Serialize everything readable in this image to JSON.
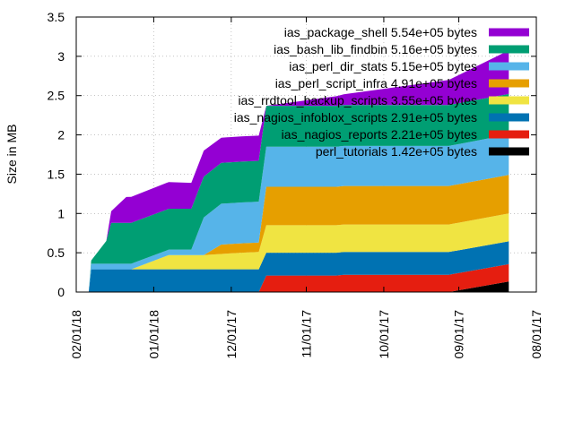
{
  "chart_data": {
    "type": "area",
    "stacked": true,
    "title": "",
    "xlabel": "",
    "ylabel": "Size in MB",
    "ylim": [
      0,
      3.5
    ],
    "yticks": [
      "0",
      "0.5",
      "1",
      "1.5",
      "2",
      "2.5",
      "3",
      "3.5"
    ],
    "xaxis": {
      "reversed": true,
      "range": [
        "2018-02-01",
        "2017-08-01"
      ]
    },
    "xticks": [
      "02/01/18",
      "01/01/18",
      "12/01/17",
      "11/01/17",
      "10/01/17",
      "09/01/17",
      "08/01/17"
    ],
    "xtick_dates": [
      "2018-02-01",
      "2018-01-01",
      "2017-12-01",
      "2017-11-01",
      "2017-10-01",
      "2017-09-01",
      "2017-08-01"
    ],
    "grid": true,
    "legend_position": "top-right",
    "series": [
      {
        "name": "perl_tutorials 1.42e+05 bytes",
        "color": "#000000",
        "points": [
          [
            "2018-01-27",
            0
          ],
          [
            "2017-09-05",
            0
          ],
          [
            "2017-08-12",
            0.135
          ]
        ]
      },
      {
        "name": "ias_nagios_reports 2.21e+05 bytes",
        "color": "#e51e10",
        "points": [
          [
            "2018-01-27",
            0
          ],
          [
            "2017-11-20",
            0
          ],
          [
            "2017-11-17",
            0.21
          ],
          [
            "2017-10-20",
            0.21
          ],
          [
            "2017-10-17",
            0.22
          ],
          [
            "2017-09-05",
            0.22
          ],
          [
            "2017-08-12",
            0.22
          ]
        ]
      },
      {
        "name": "ias_nagios_infoblox_scripts 2.91e+05 bytes",
        "color": "#0072b2",
        "points": [
          [
            "2018-01-27",
            0
          ],
          [
            "2018-01-26",
            0.29
          ],
          [
            "2017-11-20",
            0.29
          ],
          [
            "2017-11-17",
            0.29
          ],
          [
            "2017-09-05",
            0.29
          ],
          [
            "2017-08-12",
            0.29
          ]
        ]
      },
      {
        "name": "ias_rrdtool_backup_scripts 3.55e+05 bytes",
        "color": "#f0e442",
        "points": [
          [
            "2018-01-27",
            0
          ],
          [
            "2018-01-10",
            0
          ],
          [
            "2017-12-26",
            0.18
          ],
          [
            "2017-12-12",
            0.18
          ],
          [
            "2017-11-27",
            0.21
          ],
          [
            "2017-11-20",
            0.22
          ],
          [
            "2017-11-17",
            0.35
          ],
          [
            "2017-09-05",
            0.35
          ],
          [
            "2017-08-12",
            0.355
          ]
        ]
      },
      {
        "name": "ias_perl_script_infra 4.91e+05 bytes",
        "color": "#e69f00",
        "points": [
          [
            "2018-01-27",
            0
          ],
          [
            "2017-12-12",
            0
          ],
          [
            "2017-12-05",
            0.12
          ],
          [
            "2017-11-20",
            0.12
          ],
          [
            "2017-11-17",
            0.49
          ],
          [
            "2017-09-05",
            0.49
          ],
          [
            "2017-08-12",
            0.49
          ]
        ]
      },
      {
        "name": "ias_perl_dir_stats 5.15e+05 bytes",
        "color": "#56b4e9",
        "points": [
          [
            "2018-01-27",
            0
          ],
          [
            "2018-01-26",
            0.07
          ],
          [
            "2018-01-12",
            0.07
          ],
          [
            "2017-12-27",
            0.07
          ],
          [
            "2017-12-17",
            0.07
          ],
          [
            "2017-12-12",
            0.48
          ],
          [
            "2017-12-05",
            0.52
          ],
          [
            "2017-11-20",
            0.52
          ],
          [
            "2017-11-17",
            0.51
          ],
          [
            "2017-09-05",
            0.51
          ],
          [
            "2017-08-12",
            0.515
          ]
        ]
      },
      {
        "name": "ias_bash_lib_findbin 5.16e+05 bytes",
        "color": "#009e73",
        "points": [
          [
            "2018-01-27",
            0
          ],
          [
            "2018-01-20",
            0.29
          ],
          [
            "2018-01-18",
            0.52
          ],
          [
            "2018-01-12",
            0.52
          ],
          [
            "2017-12-27",
            0.52
          ],
          [
            "2017-12-17",
            0.52
          ],
          [
            "2017-12-12",
            0.52
          ],
          [
            "2017-12-05",
            0.52
          ],
          [
            "2017-11-20",
            0.52
          ],
          [
            "2017-11-17",
            0.52
          ],
          [
            "2017-09-05",
            0.52
          ],
          [
            "2017-08-12",
            0.516
          ]
        ]
      },
      {
        "name": "ias_package_shell 5.54e+05 bytes",
        "color": "#9400d3",
        "points": [
          [
            "2018-01-27",
            0
          ],
          [
            "2018-01-20",
            0
          ],
          [
            "2018-01-18",
            0.15
          ],
          [
            "2018-01-12",
            0.33
          ],
          [
            "2017-12-27",
            0.34
          ],
          [
            "2017-12-17",
            0.33
          ],
          [
            "2017-12-12",
            0.33
          ],
          [
            "2017-12-05",
            0.32
          ],
          [
            "2017-11-20",
            0.32
          ],
          [
            "2017-11-17",
            0.0
          ],
          [
            "2017-09-05",
            0.32
          ],
          [
            "2017-08-12",
            0.554
          ]
        ]
      }
    ]
  }
}
